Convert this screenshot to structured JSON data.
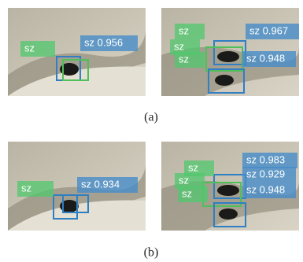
{
  "panels": [
    {
      "labels": [
        "sz",
        "sz 0.956"
      ]
    },
    {
      "labels": [
        "sz",
        "sz",
        "sz",
        "sz 0.967",
        "sz 0.948"
      ]
    },
    {
      "labels": [
        "sz",
        "sz 0.934"
      ]
    },
    {
      "labels": [
        "sz",
        "sz",
        "sz",
        "sz 0.983",
        "sz 0.929",
        "sz 0.948"
      ]
    }
  ],
  "captions": [
    "(a)",
    "(b)"
  ]
}
